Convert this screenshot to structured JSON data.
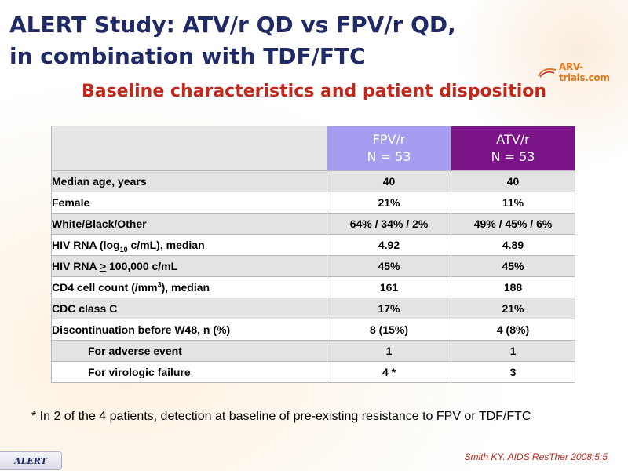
{
  "title": {
    "line1": "ALERT Study: ATV/r QD vs FPV/r QD,",
    "line2": "in combination with TDF/FTC"
  },
  "logo": {
    "text": "ARV-trials.com",
    "icon": "arv-trials-logo-icon"
  },
  "subtitle": "Baseline characteristics and patient disposition",
  "table": {
    "header": {
      "fpv": {
        "line1": "FPV/r",
        "line2": "N = 53",
        "color": "#a59df0"
      },
      "atv": {
        "line1": "ATV/r",
        "line2": "N = 53",
        "color": "#7a1487"
      }
    },
    "rows": [
      {
        "label": "Median age, years",
        "fpv": "40",
        "atv": "40"
      },
      {
        "label": "Female",
        "fpv": "21%",
        "atv": "11%"
      },
      {
        "label": "White/Black/Other",
        "fpv": "64% / 34% / 2%",
        "atv": "49% / 45% / 6%"
      },
      {
        "label_pre": "HIV RNA (log",
        "label_sub": "10",
        "label_post": " c/mL), median",
        "fpv": "4.92",
        "atv": "4.89"
      },
      {
        "label_pre": "HIV RNA ",
        "label_ge": ">",
        "label_post": " 100,000 c/mL",
        "fpv": "45%",
        "atv": "45%"
      },
      {
        "label_pre": "CD4 cell count (/mm",
        "label_sup": "3",
        "label_post": "), median",
        "fpv": "161",
        "atv": "188"
      },
      {
        "label": "CDC class C",
        "fpv": "17%",
        "atv": "21%"
      },
      {
        "label": "Discontinuation before W48, n (%)",
        "fpv": "8 (15%)",
        "atv": "4 (8%)"
      },
      {
        "label": "For adverse event",
        "fpv": "1",
        "atv": "1"
      },
      {
        "label": "For virologic failure",
        "fpv": "4 *",
        "atv": "3"
      }
    ]
  },
  "footnote": "* In 2 of the 4 patients, detection at baseline of pre-existing resistance to FPV or TDF/FTC",
  "badge": "ALERT",
  "citation": "Smith KY. AIDS ResTher 2008;5:5"
}
